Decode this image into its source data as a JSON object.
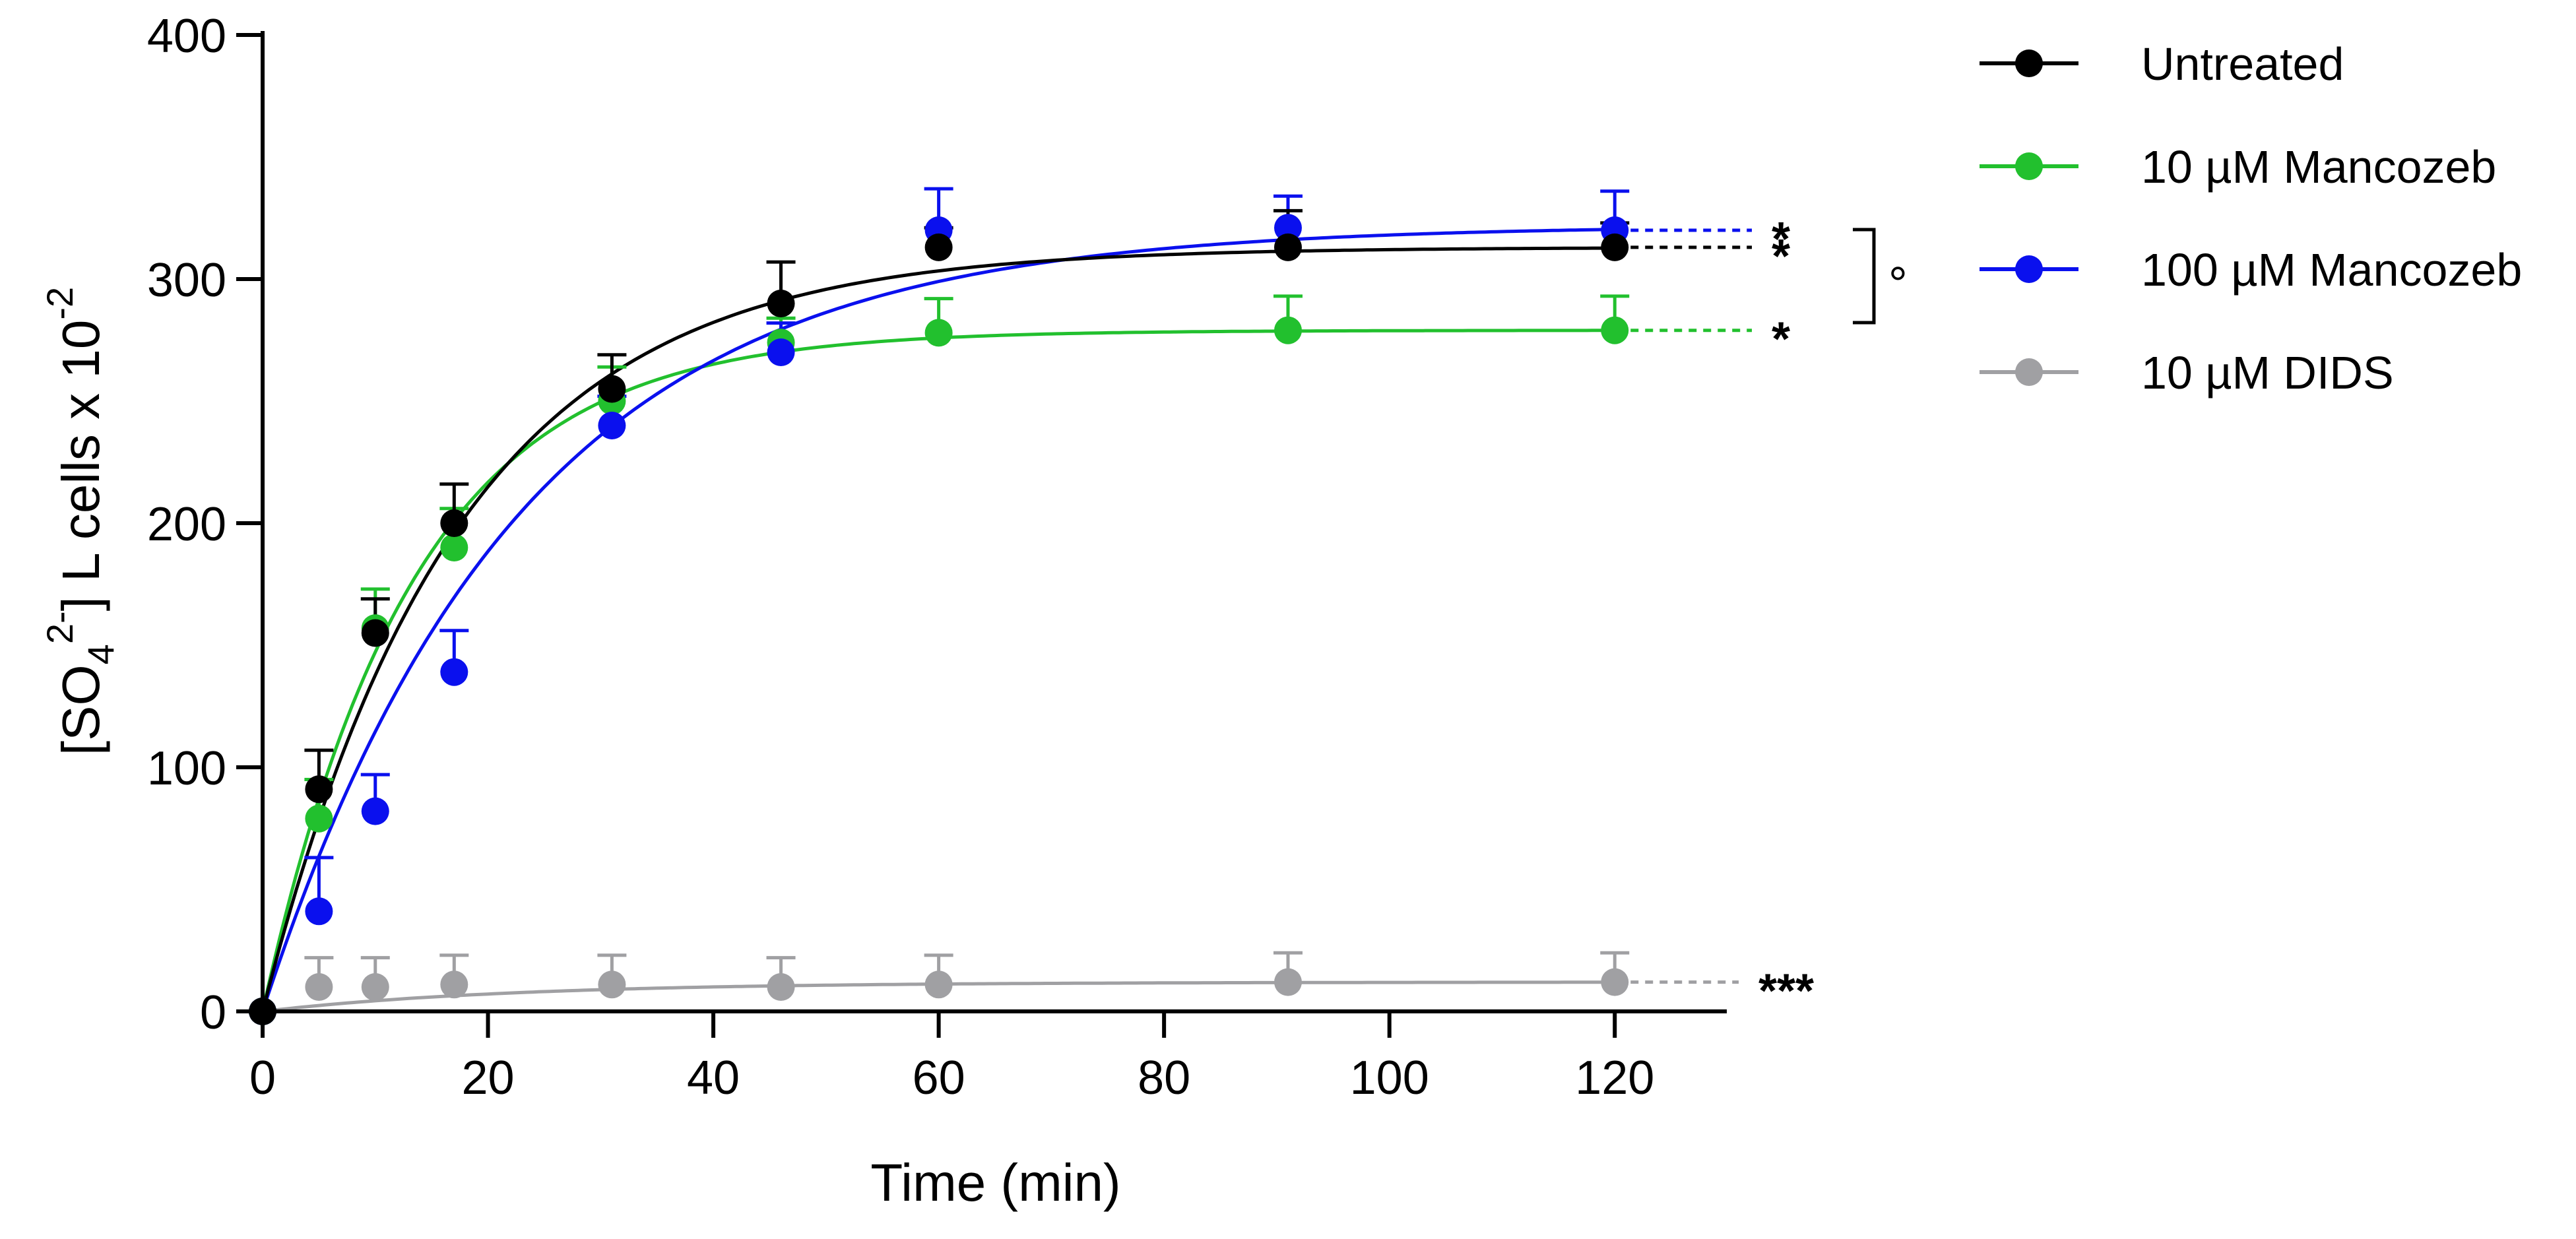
{
  "chart_data": {
    "type": "scatter",
    "xlabel": "Time (min)",
    "ylabel": {
      "open_bracket": "[SO",
      "subscript": "4",
      "superscript": "2-",
      "close_bracket": "] L cells x 10",
      "exponent": "-2"
    },
    "xlim": [
      0,
      130
    ],
    "ylim": [
      0,
      400
    ],
    "xticks": [
      0,
      20,
      40,
      60,
      80,
      100,
      120
    ],
    "yticks": [
      0,
      100,
      200,
      300,
      400
    ],
    "x": [
      0,
      5,
      10,
      17,
      31,
      46,
      60,
      91,
      120
    ],
    "series": [
      {
        "name": "Untreated",
        "color": "#000000",
        "values": [
          0,
          91,
          155,
          200,
          255,
          290,
          313,
          313,
          313
        ],
        "errors": [
          0,
          16,
          14,
          16,
          14,
          17,
          8,
          15,
          10
        ],
        "fit": {
          "ymax": 313,
          "k": 0.058
        },
        "significance": "*"
      },
      {
        "name": "10 µM Mancozeb",
        "color": "#22c02e",
        "values": [
          0,
          79,
          157,
          190,
          250,
          274,
          278,
          279,
          279
        ],
        "errors": [
          0,
          16,
          16,
          16,
          14,
          10,
          14,
          14,
          14
        ],
        "fit": {
          "ymax": 279,
          "k": 0.075
        },
        "significance": "*"
      },
      {
        "name": "100 µM Mancozeb",
        "color": "#0a10ee",
        "values": [
          0,
          41,
          82,
          139,
          240,
          270,
          320,
          321,
          320
        ],
        "errors": [
          0,
          22,
          15,
          17,
          12,
          12,
          17,
          13,
          16
        ],
        "fit": {
          "ymax": 322,
          "k": 0.044
        },
        "significance": "*"
      },
      {
        "name": "10 µM DIDS",
        "color": "#a0a0a3",
        "values": [
          0,
          10,
          10,
          11,
          11,
          10,
          11,
          12,
          12
        ],
        "errors": [
          0,
          12,
          12,
          12,
          12,
          12,
          12,
          12,
          12
        ],
        "fit": {
          "ymax": 12,
          "k": 0.045
        },
        "significance": "***"
      }
    ],
    "bracket_annotation": "°",
    "legend_position": "top-right"
  }
}
